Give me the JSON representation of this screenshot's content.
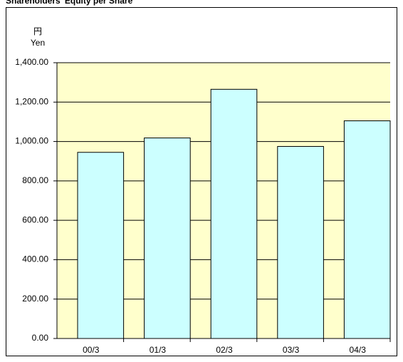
{
  "chart_data": {
    "type": "bar",
    "title": "Shareholders' Equity per Share",
    "y_unit_label": "円",
    "y_axis_label": "Yen",
    "categories": [
      "00/3",
      "01/3",
      "02/3",
      "03/3",
      "04/3"
    ],
    "values": [
      945,
      1018,
      1265,
      975,
      1105
    ],
    "color": "#ccffff",
    "ylim": [
      0,
      1400
    ],
    "yticks": [
      {
        "value": 0,
        "label": "0.00"
      },
      {
        "value": 200,
        "label": "200.00"
      },
      {
        "value": 400,
        "label": "400.00"
      },
      {
        "value": 600,
        "label": "600.00"
      },
      {
        "value": 800,
        "label": "800.00"
      },
      {
        "value": 1000,
        "label": "1,000.00"
      },
      {
        "value": 1200,
        "label": "1,200.00"
      },
      {
        "value": 1400,
        "label": "1,400.00"
      }
    ],
    "grid": true
  }
}
